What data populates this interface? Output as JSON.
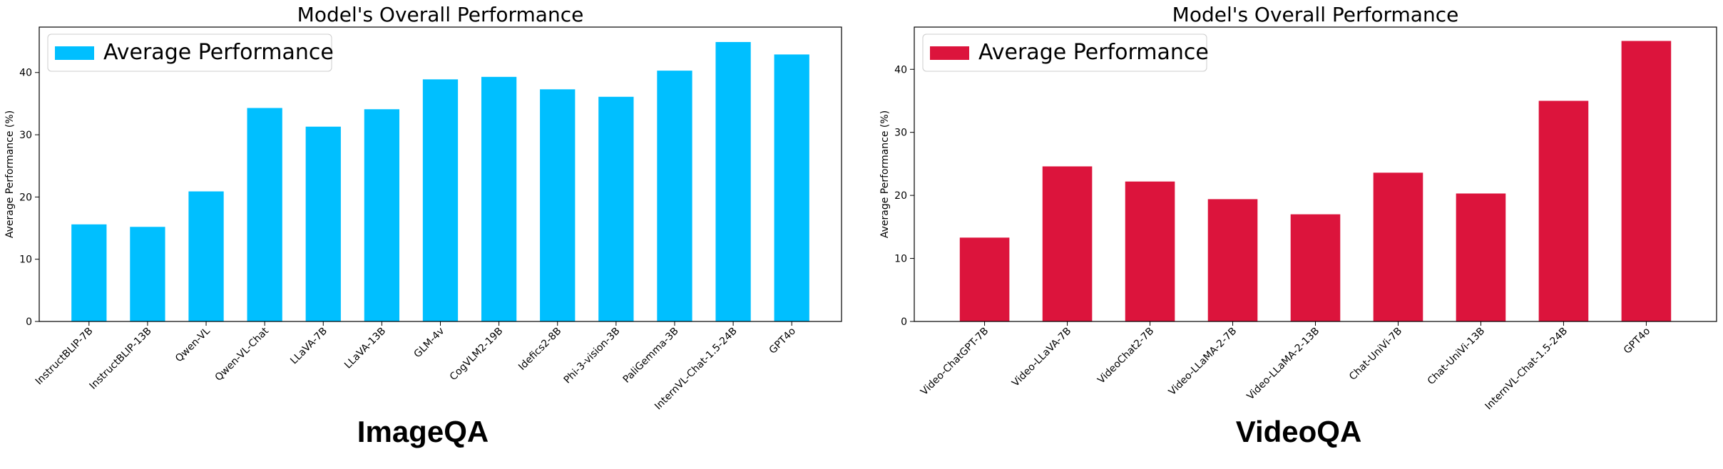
{
  "chart_data": [
    {
      "type": "bar",
      "title": "Model's Overall Performance",
      "xlabel": "",
      "ylabel": "Average Performance (%)",
      "ylim": [
        0,
        47.3
      ],
      "yticks": [
        0,
        10,
        20,
        30,
        40
      ],
      "grid": false,
      "legend_position": "top-left",
      "color": "#00BFFF",
      "categories": [
        "InstructBLIP-7B",
        "InstructBLIP-13B",
        "Qwen-VL",
        "Qwen-VL-Chat",
        "LLaVA-7B",
        "LLaVA-13B",
        "GLM-4v",
        "CogVLM2-19B",
        "Idefics2-8B",
        "Phi-3-vision-3B",
        "PaliGemma-3B",
        "InternVL-Chat-1.5-24B",
        "GPT4o"
      ],
      "series": [
        {
          "name": "Average Performance",
          "values": [
            15.6,
            15.2,
            20.9,
            34.3,
            31.3,
            34.1,
            38.9,
            39.3,
            37.3,
            36.1,
            40.3,
            44.9,
            42.9
          ]
        }
      ],
      "caption": "ImageQA"
    },
    {
      "type": "bar",
      "title": "Model's Overall Performance",
      "xlabel": "",
      "ylabel": "Average Performance (%)",
      "ylim": [
        0,
        46.7
      ],
      "yticks": [
        0,
        10,
        20,
        30,
        40
      ],
      "grid": false,
      "legend_position": "top-left",
      "color": "#DC143C",
      "categories": [
        "Video-ChatGPT-7B",
        "Video-LLaVA-7B",
        "VideoChat2-7B",
        "Video-LLaMA-2-7B",
        "Video-LLaMA-2-13B",
        "Chat-UniVi-7B",
        "Chat-UniVi-13B",
        "InternVL-Chat-1.5-24B",
        "GPT4o"
      ],
      "series": [
        {
          "name": "Average Performance",
          "values": [
            13.3,
            24.6,
            22.2,
            19.4,
            17.0,
            23.6,
            20.3,
            35.0,
            44.5
          ]
        }
      ],
      "caption": "VideoQA"
    }
  ]
}
